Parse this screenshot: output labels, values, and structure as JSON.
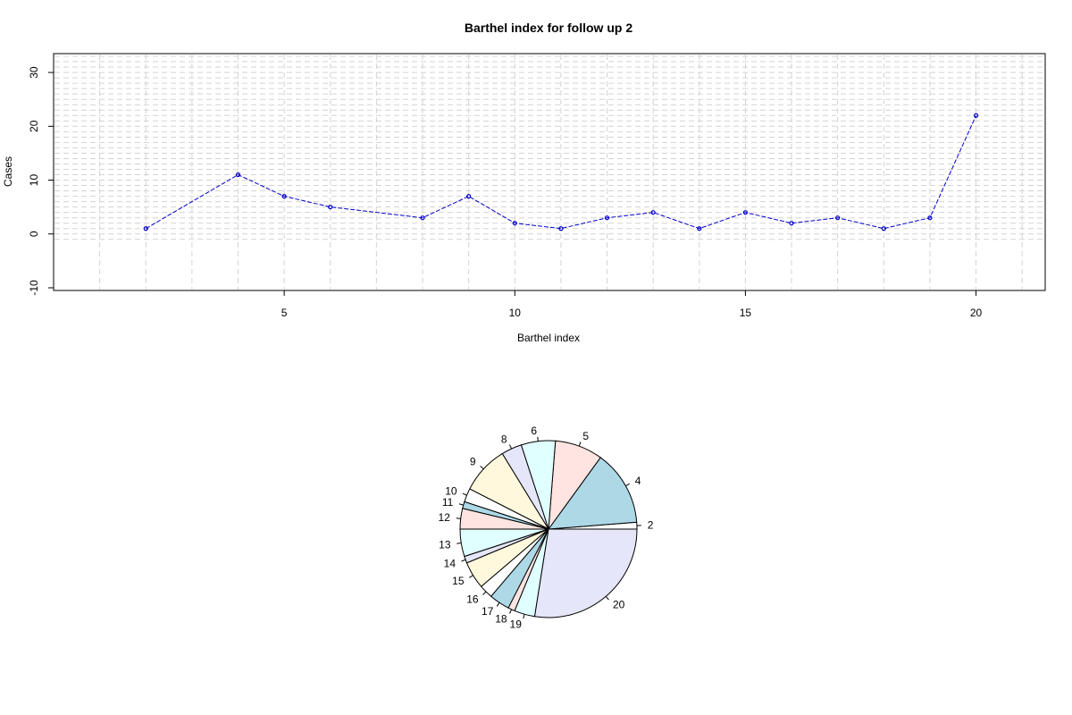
{
  "chart_data": [
    {
      "type": "line",
      "title": "Barthel index for follow up 2",
      "xlabel": "Barthel index",
      "ylabel": "Cases",
      "xlim": [
        0,
        21.5
      ],
      "ylim": [
        -10.5,
        33.5
      ],
      "x_ticks": [
        5,
        10,
        15,
        20
      ],
      "y_ticks": [
        -10,
        0,
        10,
        20,
        30
      ],
      "grid": true,
      "series": [
        {
          "color": "#0000CC",
          "x": [
            2,
            4,
            5,
            6,
            8,
            9,
            10,
            11,
            12,
            13,
            14,
            15,
            16,
            17,
            18,
            19,
            20
          ],
          "y": [
            1,
            11,
            7,
            5,
            3,
            7,
            2,
            1,
            3,
            4,
            1,
            4,
            2,
            3,
            1,
            3,
            22
          ]
        }
      ]
    },
    {
      "type": "pie",
      "labels": [
        "2",
        "4",
        "5",
        "6",
        "8",
        "9",
        "10",
        "11",
        "12",
        "13",
        "14",
        "15",
        "16",
        "17",
        "18",
        "19",
        "20"
      ],
      "values": [
        1,
        11,
        7,
        5,
        3,
        7,
        2,
        1,
        3,
        4,
        1,
        4,
        2,
        3,
        1,
        3,
        22
      ],
      "colors": [
        "#FFFFFF",
        "#ADD8E6",
        "#FFE4E1",
        "#E0FFFF",
        "#E6E6FA",
        "#FFF8DC"
      ]
    }
  ]
}
